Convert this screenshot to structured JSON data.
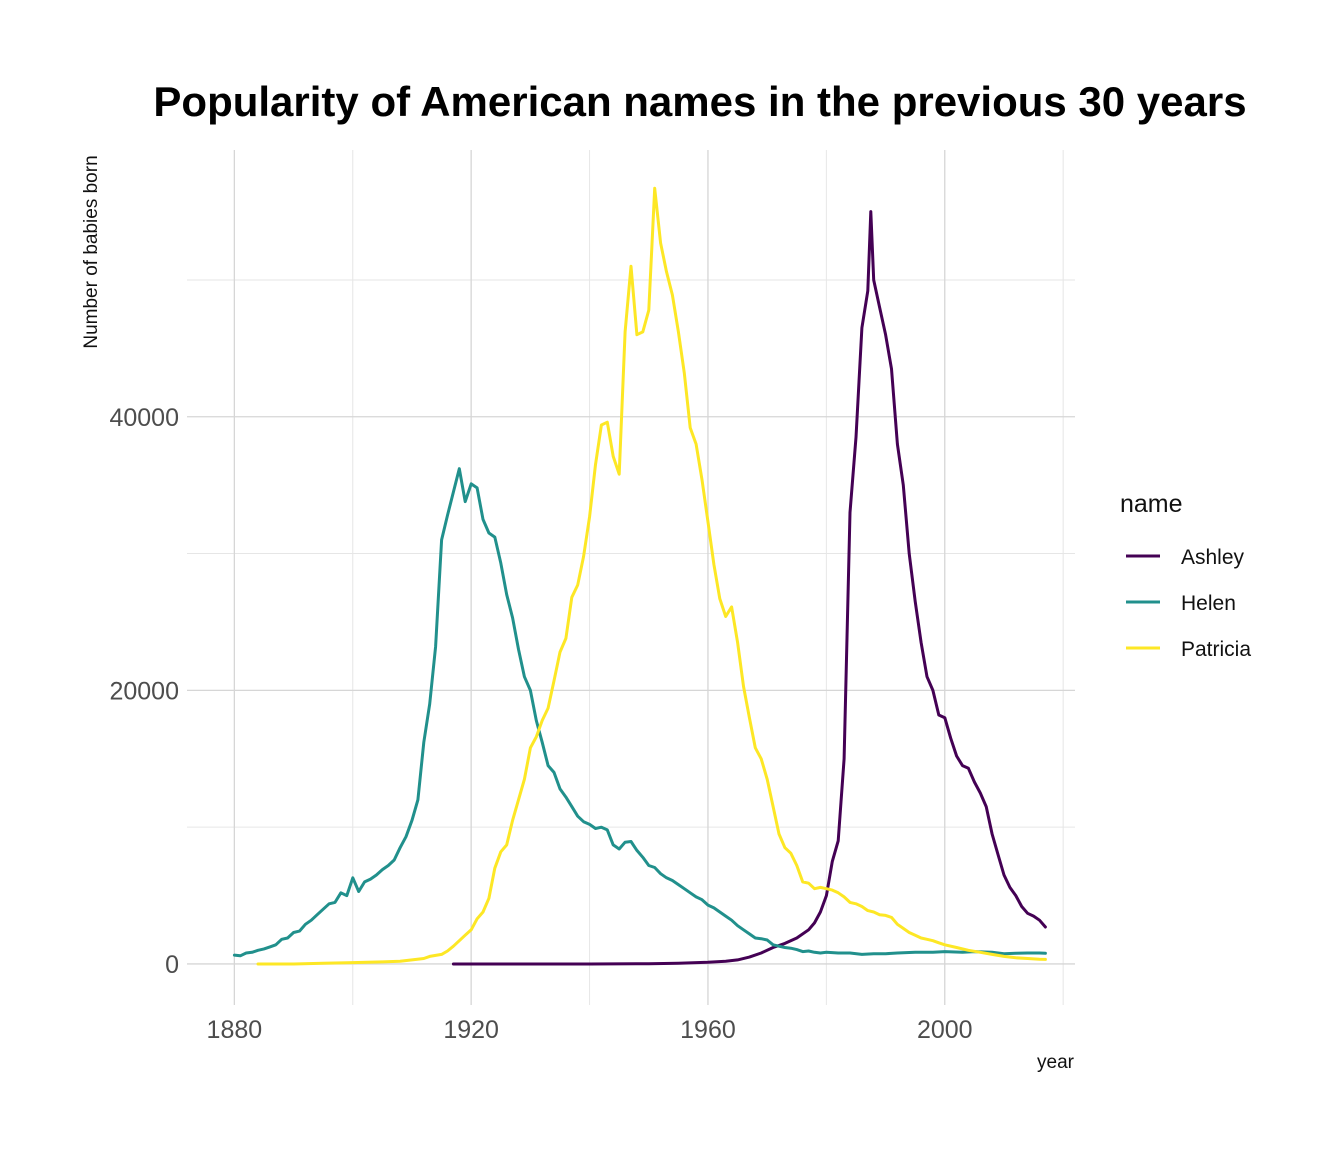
{
  "chart_data": {
    "type": "line",
    "title": "Popularity of American names in the previous 30 years",
    "xlabel": "year",
    "ylabel": "Number of babies born",
    "xlim": [
      1872,
      2022
    ],
    "ylim": [
      -3000,
      59500
    ],
    "x_ticks": [
      1880,
      1920,
      1960,
      2000
    ],
    "x_tick_labels": [
      "1880",
      "1920",
      "1960",
      "2000"
    ],
    "x_minor_ticks": [
      1900,
      1940,
      1980,
      2020
    ],
    "y_ticks": [
      0,
      20000,
      40000
    ],
    "y_tick_labels": [
      "0",
      "20000",
      "40000"
    ],
    "y_minor_ticks": [
      10000,
      30000,
      50000
    ],
    "grid": true,
    "legend": {
      "title": "name",
      "position": "right"
    },
    "series": [
      {
        "name": "Ashley",
        "color": "#440154",
        "points": [
          [
            1917,
            0
          ],
          [
            1930,
            0
          ],
          [
            1940,
            0
          ],
          [
            1950,
            20
          ],
          [
            1955,
            50
          ],
          [
            1960,
            120
          ],
          [
            1963,
            200
          ],
          [
            1965,
            300
          ],
          [
            1967,
            500
          ],
          [
            1969,
            800
          ],
          [
            1971,
            1200
          ],
          [
            1973,
            1500
          ],
          [
            1975,
            1900
          ],
          [
            1977,
            2500
          ],
          [
            1978,
            3000
          ],
          [
            1979,
            3800
          ],
          [
            1980,
            5000
          ],
          [
            1981,
            7500
          ],
          [
            1982,
            9000
          ],
          [
            1983,
            15000
          ],
          [
            1984,
            33000
          ],
          [
            1985,
            38500
          ],
          [
            1986,
            46500
          ],
          [
            1987,
            49200
          ],
          [
            1987.5,
            55000
          ],
          [
            1988,
            50000
          ],
          [
            1989,
            48000
          ],
          [
            1990,
            46000
          ],
          [
            1991,
            43500
          ],
          [
            1992,
            38000
          ],
          [
            1993,
            35000
          ],
          [
            1994,
            30000
          ],
          [
            1995,
            26500
          ],
          [
            1996,
            23500
          ],
          [
            1997,
            21000
          ],
          [
            1998,
            20000
          ],
          [
            1999,
            18200
          ],
          [
            2000,
            18000
          ],
          [
            2001,
            16500
          ],
          [
            2002,
            15200
          ],
          [
            2003,
            14500
          ],
          [
            2004,
            14300
          ],
          [
            2005,
            13300
          ],
          [
            2006,
            12500
          ],
          [
            2007,
            11500
          ],
          [
            2008,
            9500
          ],
          [
            2009,
            8000
          ],
          [
            2010,
            6500
          ],
          [
            2011,
            5600
          ],
          [
            2012,
            5000
          ],
          [
            2013,
            4200
          ],
          [
            2014,
            3700
          ],
          [
            2015,
            3500
          ],
          [
            2016,
            3200
          ],
          [
            2017,
            2700
          ]
        ]
      },
      {
        "name": "Helen",
        "color": "#21908c",
        "points": [
          [
            1880,
            650
          ],
          [
            1881,
            600
          ],
          [
            1882,
            800
          ],
          [
            1883,
            850
          ],
          [
            1884,
            1000
          ],
          [
            1885,
            1100
          ],
          [
            1886,
            1250
          ],
          [
            1887,
            1400
          ],
          [
            1888,
            1800
          ],
          [
            1889,
            1900
          ],
          [
            1890,
            2300
          ],
          [
            1891,
            2400
          ],
          [
            1892,
            2900
          ],
          [
            1893,
            3200
          ],
          [
            1894,
            3600
          ],
          [
            1895,
            4000
          ],
          [
            1896,
            4400
          ],
          [
            1897,
            4500
          ],
          [
            1898,
            5200
          ],
          [
            1899,
            5000
          ],
          [
            1900,
            6300
          ],
          [
            1901,
            5300
          ],
          [
            1902,
            6000
          ],
          [
            1903,
            6200
          ],
          [
            1904,
            6500
          ],
          [
            1905,
            6900
          ],
          [
            1906,
            7200
          ],
          [
            1907,
            7600
          ],
          [
            1908,
            8500
          ],
          [
            1909,
            9300
          ],
          [
            1910,
            10500
          ],
          [
            1911,
            12000
          ],
          [
            1912,
            16200
          ],
          [
            1913,
            19000
          ],
          [
            1914,
            23200
          ],
          [
            1915,
            31000
          ],
          [
            1916,
            32800
          ],
          [
            1917,
            34500
          ],
          [
            1918,
            36200
          ],
          [
            1919,
            33800
          ],
          [
            1920,
            35100
          ],
          [
            1921,
            34800
          ],
          [
            1922,
            32500
          ],
          [
            1923,
            31500
          ],
          [
            1924,
            31200
          ],
          [
            1925,
            29300
          ],
          [
            1926,
            27000
          ],
          [
            1927,
            25300
          ],
          [
            1928,
            23000
          ],
          [
            1929,
            21000
          ],
          [
            1930,
            20000
          ],
          [
            1931,
            17800
          ],
          [
            1932,
            16200
          ],
          [
            1933,
            14500
          ],
          [
            1934,
            14000
          ],
          [
            1935,
            12800
          ],
          [
            1936,
            12200
          ],
          [
            1937,
            11500
          ],
          [
            1938,
            10800
          ],
          [
            1939,
            10400
          ],
          [
            1940,
            10200
          ],
          [
            1941,
            9900
          ],
          [
            1942,
            10000
          ],
          [
            1943,
            9800
          ],
          [
            1944,
            8700
          ],
          [
            1945,
            8400
          ],
          [
            1946,
            8900
          ],
          [
            1947,
            8950
          ],
          [
            1948,
            8300
          ],
          [
            1949,
            7800
          ],
          [
            1950,
            7200
          ],
          [
            1951,
            7050
          ],
          [
            1952,
            6600
          ],
          [
            1953,
            6300
          ],
          [
            1954,
            6100
          ],
          [
            1955,
            5800
          ],
          [
            1956,
            5500
          ],
          [
            1957,
            5200
          ],
          [
            1958,
            4900
          ],
          [
            1959,
            4700
          ],
          [
            1960,
            4300
          ],
          [
            1961,
            4100
          ],
          [
            1962,
            3800
          ],
          [
            1963,
            3500
          ],
          [
            1964,
            3200
          ],
          [
            1965,
            2800
          ],
          [
            1966,
            2500
          ],
          [
            1967,
            2200
          ],
          [
            1968,
            1900
          ],
          [
            1969,
            1850
          ],
          [
            1970,
            1750
          ],
          [
            1971,
            1400
          ],
          [
            1972,
            1300
          ],
          [
            1973,
            1200
          ],
          [
            1974,
            1150
          ],
          [
            1975,
            1050
          ],
          [
            1976,
            900
          ],
          [
            1977,
            950
          ],
          [
            1978,
            850
          ],
          [
            1979,
            800
          ],
          [
            1980,
            850
          ],
          [
            1982,
            800
          ],
          [
            1984,
            800
          ],
          [
            1986,
            700
          ],
          [
            1988,
            750
          ],
          [
            1990,
            750
          ],
          [
            1992,
            800
          ],
          [
            1995,
            850
          ],
          [
            1998,
            850
          ],
          [
            2000,
            900
          ],
          [
            2003,
            850
          ],
          [
            2005,
            900
          ],
          [
            2008,
            850
          ],
          [
            2010,
            750
          ],
          [
            2012,
            780
          ],
          [
            2014,
            800
          ],
          [
            2016,
            800
          ],
          [
            2017,
            780
          ]
        ]
      },
      {
        "name": "Patricia",
        "color": "#fde725",
        "points": [
          [
            1884,
            0
          ],
          [
            1890,
            0
          ],
          [
            1895,
            50
          ],
          [
            1900,
            100
          ],
          [
            1905,
            150
          ],
          [
            1908,
            200
          ],
          [
            1910,
            300
          ],
          [
            1912,
            400
          ],
          [
            1913,
            550
          ],
          [
            1915,
            700
          ],
          [
            1916,
            950
          ],
          [
            1917,
            1300
          ],
          [
            1918,
            1700
          ],
          [
            1919,
            2100
          ],
          [
            1920,
            2500
          ],
          [
            1921,
            3300
          ],
          [
            1922,
            3800
          ],
          [
            1923,
            4800
          ],
          [
            1924,
            7000
          ],
          [
            1925,
            8200
          ],
          [
            1926,
            8700
          ],
          [
            1927,
            10500
          ],
          [
            1928,
            12000
          ],
          [
            1929,
            13500
          ],
          [
            1930,
            15800
          ],
          [
            1931,
            16600
          ],
          [
            1932,
            17800
          ],
          [
            1933,
            18700
          ],
          [
            1934,
            20700
          ],
          [
            1935,
            22800
          ],
          [
            1936,
            23800
          ],
          [
            1937,
            26800
          ],
          [
            1938,
            27700
          ],
          [
            1939,
            29800
          ],
          [
            1940,
            32700
          ],
          [
            1941,
            36500
          ],
          [
            1942,
            39400
          ],
          [
            1943,
            39600
          ],
          [
            1944,
            37100
          ],
          [
            1945,
            35800
          ],
          [
            1946,
            46200
          ],
          [
            1947,
            51000
          ],
          [
            1948,
            46000
          ],
          [
            1949,
            46200
          ],
          [
            1950,
            47800
          ],
          [
            1951,
            56700
          ],
          [
            1952,
            52700
          ],
          [
            1953,
            50600
          ],
          [
            1954,
            48900
          ],
          [
            1955,
            46200
          ],
          [
            1956,
            43200
          ],
          [
            1957,
            39200
          ],
          [
            1958,
            38000
          ],
          [
            1959,
            35400
          ],
          [
            1960,
            32300
          ],
          [
            1961,
            29200
          ],
          [
            1962,
            26700
          ],
          [
            1963,
            25400
          ],
          [
            1964,
            26100
          ],
          [
            1965,
            23500
          ],
          [
            1966,
            20300
          ],
          [
            1967,
            18000
          ],
          [
            1968,
            15800
          ],
          [
            1969,
            15000
          ],
          [
            1970,
            13500
          ],
          [
            1971,
            11500
          ],
          [
            1972,
            9500
          ],
          [
            1973,
            8500
          ],
          [
            1974,
            8100
          ],
          [
            1975,
            7200
          ],
          [
            1976,
            6000
          ],
          [
            1977,
            5900
          ],
          [
            1978,
            5500
          ],
          [
            1979,
            5600
          ],
          [
            1980,
            5500
          ],
          [
            1981,
            5400
          ],
          [
            1982,
            5200
          ],
          [
            1983,
            4900
          ],
          [
            1984,
            4500
          ],
          [
            1985,
            4400
          ],
          [
            1986,
            4200
          ],
          [
            1987,
            3900
          ],
          [
            1988,
            3800
          ],
          [
            1989,
            3600
          ],
          [
            1990,
            3550
          ],
          [
            1991,
            3400
          ],
          [
            1992,
            2900
          ],
          [
            1993,
            2600
          ],
          [
            1994,
            2300
          ],
          [
            1995,
            2100
          ],
          [
            1996,
            1900
          ],
          [
            1997,
            1800
          ],
          [
            1998,
            1700
          ],
          [
            1999,
            1550
          ],
          [
            2000,
            1400
          ],
          [
            2002,
            1200
          ],
          [
            2004,
            1000
          ],
          [
            2006,
            850
          ],
          [
            2008,
            700
          ],
          [
            2010,
            550
          ],
          [
            2012,
            450
          ],
          [
            2014,
            400
          ],
          [
            2016,
            350
          ],
          [
            2017,
            330
          ]
        ]
      }
    ]
  }
}
